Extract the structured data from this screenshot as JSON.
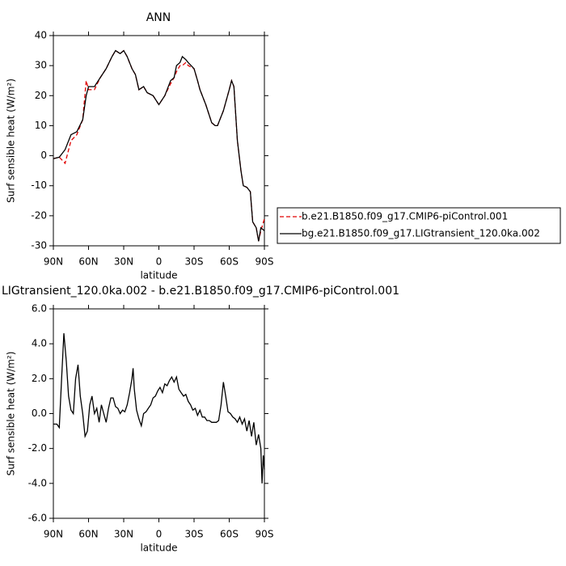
{
  "chart_data": [
    {
      "type": "line",
      "title": "ANN",
      "x_label": "latitude",
      "y_label": "Surf sensible heat (W/m²)",
      "xlim": [
        90,
        -90
      ],
      "ylim": [
        -30,
        40
      ],
      "xticks": [
        {
          "value": 90,
          "label": "90N"
        },
        {
          "value": 60,
          "label": "60N"
        },
        {
          "value": 30,
          "label": "30N"
        },
        0,
        {
          "value": -30,
          "label": "30S"
        },
        {
          "value": -60,
          "label": "60S"
        },
        {
          "value": -90,
          "label": "90S"
        }
      ],
      "yticks": [
        -30,
        -20,
        -10,
        0,
        10,
        20,
        30,
        40
      ],
      "legend": "right",
      "x": [
        90,
        85,
        80,
        75,
        70,
        65,
        62,
        60,
        55,
        50,
        45,
        40,
        37,
        33,
        30,
        27,
        23,
        20,
        17,
        13,
        10,
        5,
        0,
        -5,
        -10,
        -13,
        -15,
        -18,
        -20,
        -23,
        -25,
        -30,
        -33,
        -35,
        -40,
        -45,
        -48,
        -50,
        -55,
        -60,
        -62,
        -64,
        -67,
        -70,
        -72,
        -75,
        -78,
        -80,
        -83,
        -85,
        -87,
        -90
      ],
      "series": [
        {
          "name": "b.e21.B1850.f09_g17.CMIP6-piControl.001",
          "color": "#e00000",
          "dash": true,
          "values": [
            -1,
            -0.5,
            -2.5,
            5,
            7,
            12,
            25,
            22,
            22,
            26,
            29,
            33,
            35,
            34,
            35,
            33,
            29,
            27,
            22,
            23,
            21,
            20,
            17,
            20,
            24,
            26,
            28,
            30,
            30,
            31,
            30,
            29,
            25,
            22,
            17,
            11,
            10,
            10,
            15,
            22,
            25,
            23,
            5,
            -5,
            -10,
            -10.5,
            -12,
            -22,
            -24,
            -28.5,
            -25,
            -21
          ]
        },
        {
          "name": "bg.e21.B1850.f09_g17.LIGtransient_120.0ka.002",
          "color": "#000000",
          "dash": false,
          "values": [
            -1,
            -0.5,
            2,
            7,
            8,
            12,
            20,
            23,
            23,
            26,
            29,
            33,
            35,
            34,
            35,
            33,
            29,
            27,
            22,
            23,
            21,
            20,
            17,
            20,
            25,
            26,
            30,
            31,
            33,
            32,
            31,
            29,
            25,
            22,
            17,
            11,
            10,
            10,
            15,
            22,
            25,
            23,
            5,
            -5,
            -10,
            -10.5,
            -12,
            -22,
            -24,
            -28.5,
            -24,
            -25
          ]
        }
      ]
    },
    {
      "type": "line",
      "title": "LIGtransient_120.0ka.002 - b.e21.B1850.f09_g17.CMIP6-piControl.001",
      "x_label": "latitude",
      "y_label": "Surf sensible heat (W/m²)",
      "xlim": [
        90,
        -90
      ],
      "ylim": [
        -6,
        6
      ],
      "xticks": [
        {
          "value": 90,
          "label": "90N"
        },
        {
          "value": 60,
          "label": "60N"
        },
        {
          "value": 30,
          "label": "30N"
        },
        0,
        {
          "value": -30,
          "label": "30S"
        },
        {
          "value": -60,
          "label": "60S"
        },
        {
          "value": -90,
          "label": "90S"
        }
      ],
      "yticks": [
        {
          "value": -6,
          "label": "-6.0"
        },
        {
          "value": -4,
          "label": "-4.0"
        },
        {
          "value": -2,
          "label": "-2.0"
        },
        {
          "value": 0,
          "label": "0.0"
        },
        {
          "value": 2,
          "label": "2.0"
        },
        {
          "value": 4,
          "label": "4.0"
        },
        {
          "value": 6,
          "label": "6.0"
        }
      ],
      "color": "#000000",
      "x": [
        90,
        87,
        85,
        83,
        81,
        79,
        77,
        75,
        73,
        71,
        69,
        67,
        65,
        63,
        61,
        59,
        57,
        55,
        53,
        51,
        49,
        47,
        45,
        43,
        41,
        39,
        37,
        35,
        33,
        31,
        29,
        27,
        25,
        23,
        22,
        21,
        19,
        17,
        15,
        13,
        11,
        9,
        7,
        5,
        3,
        1,
        -1,
        -3,
        -5,
        -7,
        -9,
        -11,
        -13,
        -15,
        -17,
        -19,
        -21,
        -23,
        -25,
        -27,
        -29,
        -31,
        -33,
        -35,
        -37,
        -39,
        -41,
        -43,
        -45,
        -47,
        -49,
        -51,
        -53,
        -55,
        -57,
        -59,
        -61,
        -63,
        -65,
        -67,
        -69,
        -71,
        -73,
        -75,
        -77,
        -79,
        -81,
        -83,
        -85,
        -87,
        -88,
        -89,
        -90
      ],
      "values": [
        -0.6,
        -0.6,
        -0.8,
        2,
        4.6,
        3,
        1,
        0.2,
        0,
        2,
        2.8,
        1,
        0,
        -1.3,
        -1,
        0.5,
        1,
        0,
        0.3,
        -0.5,
        0.5,
        0,
        -0.5,
        0.3,
        0.9,
        0.9,
        0.4,
        0.3,
        0,
        0.2,
        0.1,
        0.5,
        1.2,
        2.0,
        2.6,
        1.4,
        0.2,
        -0.3,
        -0.7,
        0,
        0.1,
        0.3,
        0.5,
        0.9,
        1.0,
        1.3,
        1.5,
        1.2,
        1.7,
        1.6,
        1.9,
        2.1,
        1.8,
        2.1,
        1.4,
        1.2,
        1.0,
        1.1,
        0.7,
        0.5,
        0.2,
        0.3,
        -0.1,
        0.2,
        -0.2,
        -0.2,
        -0.4,
        -0.4,
        -0.5,
        -0.5,
        -0.5,
        -0.4,
        0.5,
        1.8,
        1.0,
        0.1,
        0,
        -0.2,
        -0.3,
        -0.5,
        -0.2,
        -0.6,
        -0.3,
        -1.0,
        -0.4,
        -1.3,
        -0.5,
        -1.8,
        -1.2,
        -2.0,
        -4.0,
        -2.4,
        -3.2
      ]
    }
  ]
}
